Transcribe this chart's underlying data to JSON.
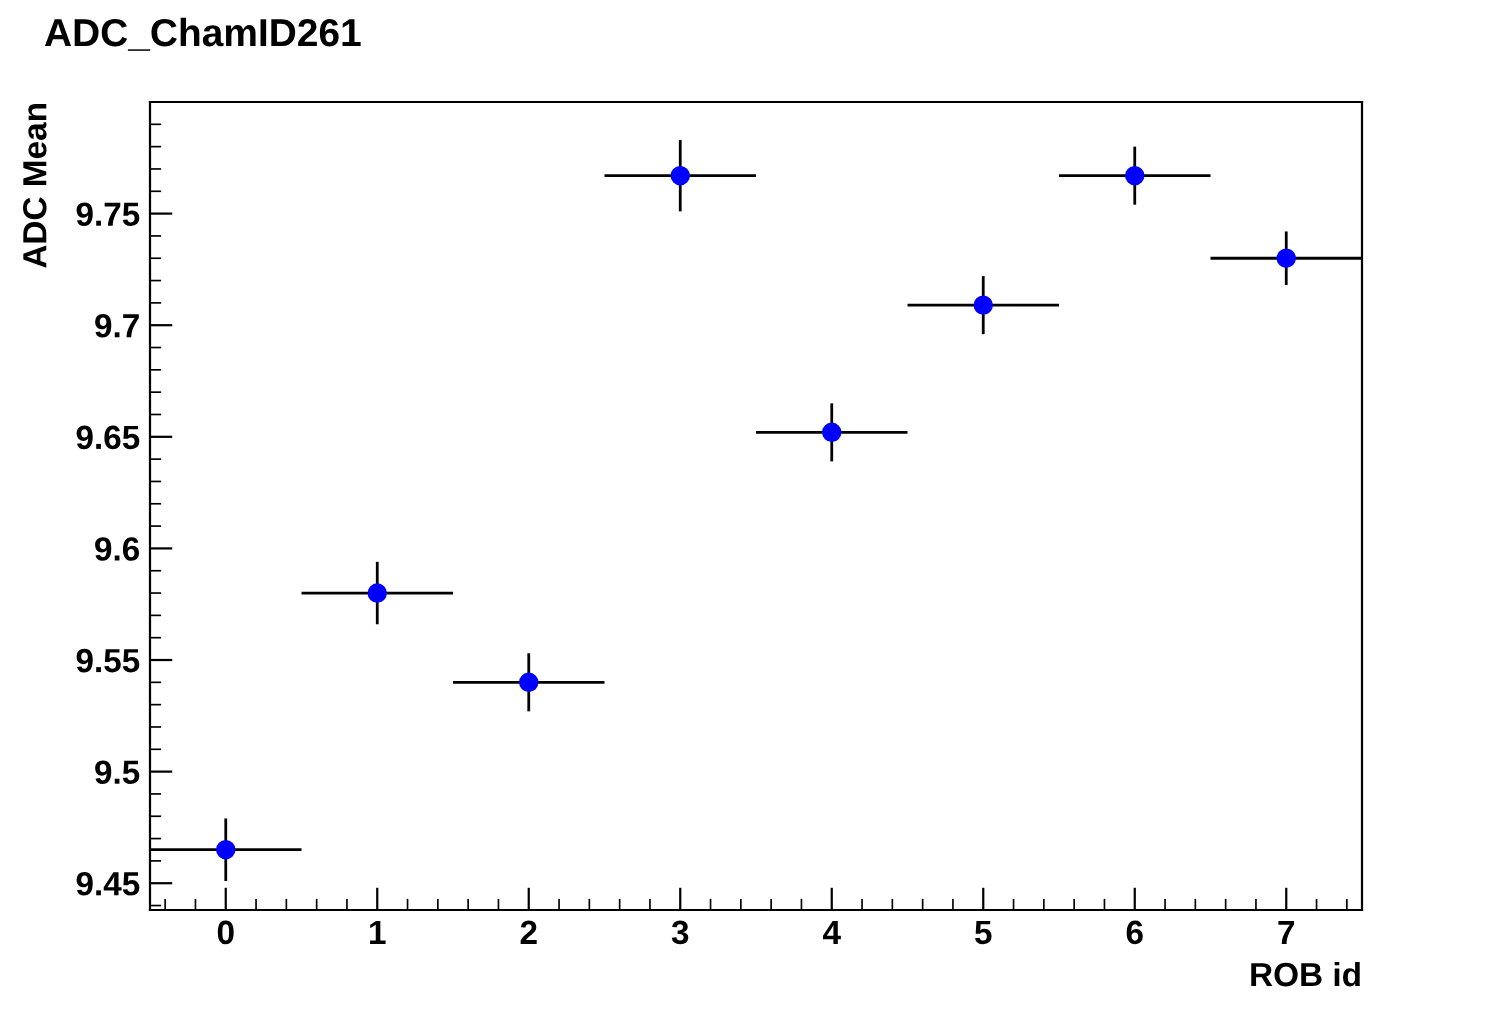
{
  "chart_data": {
    "type": "scatter",
    "title": "ADC_ChamID261",
    "xlabel": "ROB id",
    "ylabel": "ADC Mean",
    "x": [
      0,
      1,
      2,
      3,
      4,
      5,
      6,
      7
    ],
    "values": [
      9.465,
      9.58,
      9.54,
      9.767,
      9.652,
      9.709,
      9.767,
      9.73
    ],
    "errors": [
      0.014,
      0.014,
      0.013,
      0.016,
      0.013,
      0.013,
      0.013,
      0.012
    ],
    "xerrors": [
      0.5,
      0.5,
      0.5,
      0.5,
      0.5,
      0.5,
      0.5,
      0.5
    ],
    "color": "#0000ff",
    "marker": "circle",
    "xlim": [
      -0.5,
      7.5
    ],
    "xticks": [
      0,
      1,
      2,
      3,
      4,
      5,
      6,
      7
    ],
    "ylim": [
      9.438,
      9.8
    ],
    "yticks": [
      9.45,
      9.5,
      9.55,
      9.6,
      9.65,
      9.7,
      9.75
    ],
    "grid": false,
    "legend": false
  }
}
